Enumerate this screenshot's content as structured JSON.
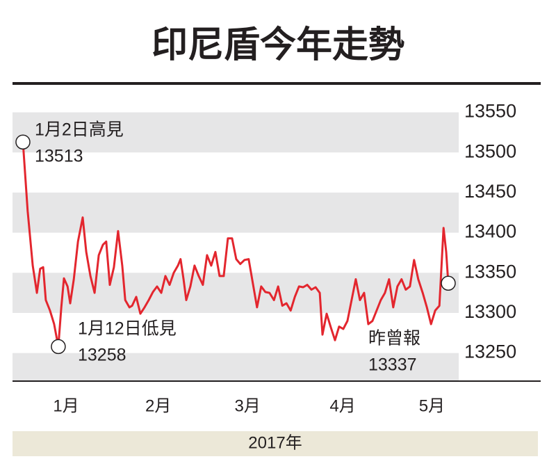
{
  "chart_data": {
    "type": "line",
    "title": "印尼盾今年走勢",
    "xlabel": "2017年",
    "color": "#e3262e",
    "x": [
      3.5,
      5.1,
      6.8,
      8.2,
      9.3,
      10.3,
      11.2,
      12.6,
      14.0,
      15.4,
      16.4,
      17.3,
      18.5,
      19.4,
      20.6,
      22.0,
      23.6,
      24.8,
      26.2,
      27.6,
      29.0,
      30.4,
      31.5,
      32.7,
      34.1,
      35.5,
      36.9,
      37.9,
      39.3,
      40.2,
      41.6,
      43.0,
      44.4,
      45.8,
      47.2,
      48.6,
      50.0,
      51.4,
      52.8,
      54.2,
      55.6,
      56.5,
      57.5,
      58.4,
      59.8,
      61.2,
      62.6,
      64.0,
      65.4,
      66.8,
      68.2,
      69.6,
      71.0,
      72.4,
      73.8,
      75.2,
      76.6,
      78.0,
      79.4,
      80.8,
      82.2,
      83.6,
      85.0,
      86.4,
      87.9,
      89.3,
      90.7,
      92.1,
      93.5,
      94.9,
      96.3,
      97.7,
      99.1,
      100.5,
      101.9,
      103.3,
      104.2,
      105.6,
      107.0,
      108.4,
      109.8,
      111.2,
      112.6,
      114.0,
      115.4,
      116.8,
      118.2,
      119.6,
      121.0,
      122.4,
      123.8,
      125.2,
      126.6,
      128.0,
      129.4,
      130.8,
      132.2,
      133.6,
      135.0,
      136.4,
      137.9,
      139.3,
      140.7,
      142.1,
      143.5,
      144.9,
      145.8,
      146.5
    ],
    "values": [
      13513,
      13427,
      13359,
      13325,
      13355,
      13357,
      13316,
      13303,
      13286,
      13258,
      13307,
      13343,
      13333,
      13312,
      13342,
      13389,
      13419,
      13376,
      13346,
      13325,
      13372,
      13385,
      13389,
      13335,
      13357,
      13402,
      13359,
      13316,
      13307,
      13309,
      13320,
      13299,
      13307,
      13316,
      13326,
      13333,
      13325,
      13346,
      13335,
      13350,
      13359,
      13367,
      13342,
      13316,
      13333,
      13359,
      13346,
      13335,
      13372,
      13359,
      13376,
      13346,
      13346,
      13393,
      13393,
      13367,
      13361,
      13366,
      13367,
      13337,
      13307,
      13333,
      13326,
      13325,
      13316,
      13333,
      13309,
      13312,
      13303,
      13320,
      13333,
      13332,
      13335,
      13329,
      13332,
      13325,
      13273,
      13299,
      13282,
      13266,
      13283,
      13280,
      13290,
      13316,
      13342,
      13316,
      13325,
      13286,
      13290,
      13303,
      13316,
      13325,
      13342,
      13307,
      13333,
      13342,
      13329,
      13333,
      13366,
      13342,
      13325,
      13307,
      13286,
      13303,
      13309,
      13406,
      13376,
      13337
    ],
    "xlim": [
      0,
      150
    ],
    "xticks": [
      {
        "value": 18,
        "label": "1月"
      },
      {
        "value": 49,
        "label": "2月"
      },
      {
        "value": 79,
        "label": "3月"
      },
      {
        "value": 111,
        "label": "4月"
      },
      {
        "value": 141,
        "label": "5月"
      }
    ],
    "ylim": [
      13215,
      13560
    ],
    "yticks": [
      13550,
      13500,
      13450,
      13400,
      13350,
      13300,
      13250
    ],
    "grid": "bands",
    "annotations": [
      {
        "label": "1月2日高見",
        "value": 13513
      },
      {
        "label": "1月12日低見",
        "value": 13258
      },
      {
        "label": "昨曾報",
        "value": 13337
      }
    ]
  }
}
